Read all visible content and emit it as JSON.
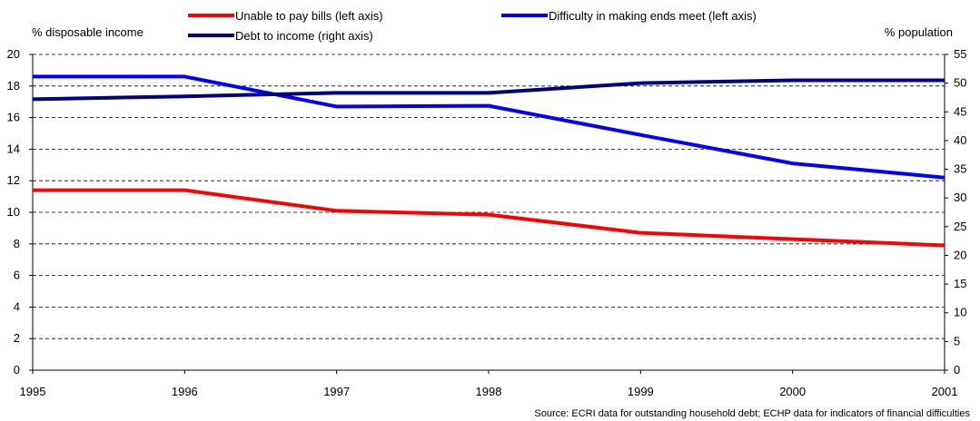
{
  "source_note": "Source: ECRI data for outstanding household debt; ECHP data for indicators of financial difficulties",
  "chart_data": {
    "type": "line",
    "title": "",
    "xlabel": "",
    "ylabel_left": "% disposable income",
    "ylabel_right": "% population",
    "x": [
      "1995",
      "1996",
      "1997",
      "1998",
      "1999",
      "2000",
      "2001"
    ],
    "ylim_left": [
      0,
      20
    ],
    "yticks_left": [
      0,
      2,
      4,
      6,
      8,
      10,
      12,
      14,
      16,
      18,
      20
    ],
    "ylim_right": [
      0,
      55
    ],
    "yticks_right": [
      0,
      5,
      10,
      15,
      20,
      25,
      30,
      35,
      40,
      45,
      50,
      55
    ],
    "grid": "horizontal dashed",
    "legend_position": "top",
    "series": [
      {
        "name": "Unable to pay bills (left axis)",
        "axis": "left",
        "color": "#ff0000",
        "values": [
          11.4,
          11.4,
          10.1,
          9.85,
          8.7,
          8.3,
          7.9
        ]
      },
      {
        "name": "Difficulty in making ends meet (left axis)",
        "axis": "left",
        "color": "#0000ff",
        "values": [
          18.6,
          18.6,
          16.7,
          16.75,
          14.9,
          13.1,
          12.2
        ]
      },
      {
        "name": "Debt to income (right axis)",
        "axis": "right",
        "color": "#000080",
        "values": [
          47.2,
          47.7,
          48.3,
          48.3,
          50.0,
          50.5,
          50.5
        ]
      }
    ]
  }
}
